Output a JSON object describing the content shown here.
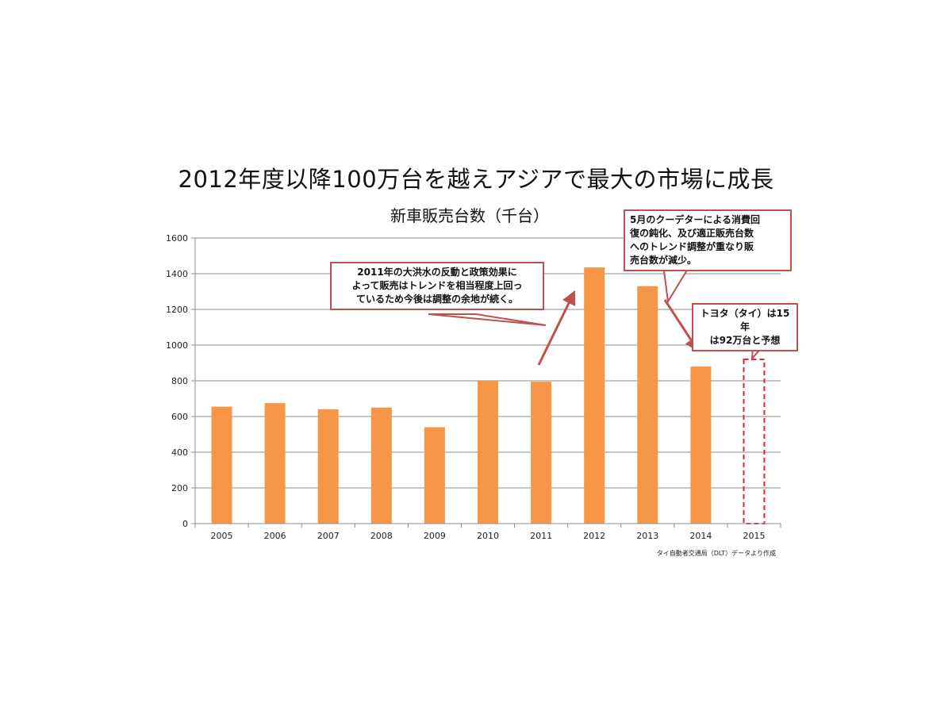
{
  "slide": {
    "title": "2012年度以降100万台を越えアジアで最大の市場に成長",
    "source": "タイ自動者交通局（DLT）データより作成"
  },
  "chart_data": {
    "type": "bar",
    "title": "新車販売台数（千台）",
    "xlabel": "",
    "ylabel": "",
    "categories": [
      "2005",
      "2006",
      "2007",
      "2008",
      "2009",
      "2010",
      "2011",
      "2012",
      "2013",
      "2014",
      "2015"
    ],
    "values": [
      655,
      675,
      640,
      650,
      540,
      800,
      795,
      1435,
      1330,
      880,
      null
    ],
    "forecast": {
      "category": "2015",
      "value": 920,
      "style": "dashed-outline"
    },
    "ylim": [
      0,
      1600
    ],
    "yticks": [
      0,
      200,
      400,
      600,
      800,
      1000,
      1200,
      1400,
      1600
    ],
    "grid": true,
    "legend": "none",
    "bar_color": "#f79646",
    "forecast_color": "#e0282e",
    "annotations": [
      {
        "id": "flood",
        "text": "2011年の大洪水の反動と政策効果に\nよって販売はトレンドを相当程度上回っ\nているため今後は調整の余地が続く。"
      },
      {
        "id": "coup",
        "text": "5月のクーデターによる消費回\n復の鈍化、及び適正販売台数\nへのトレンド調整が重なり販\n売台数が減少。"
      },
      {
        "id": "forecast",
        "text": "トヨタ（タイ）は15年\nは92万台と予想"
      }
    ],
    "arrow_color": "#c0504d",
    "callout_border": "#c0504d"
  }
}
